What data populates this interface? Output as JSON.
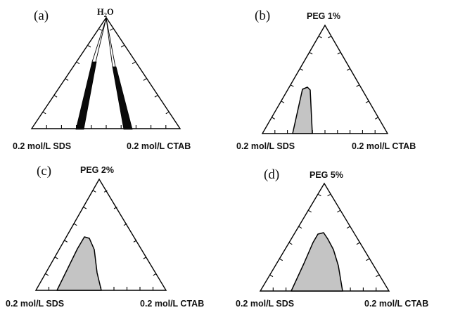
{
  "panels": [
    {
      "id": "a",
      "panel_label": "(a)",
      "top_label": "H2O",
      "top_label_main": "H",
      "top_label_sub": "2",
      "top_label_tail": "O",
      "left_label": "0.2 mol/L SDS",
      "right_label": "0.2 mol/L CTAB"
    },
    {
      "id": "b",
      "panel_label": "(b)",
      "top_label": "PEG 1%",
      "left_label": "0.2 mol/L SDS",
      "right_label": "0.2 mol/L CTAB"
    },
    {
      "id": "c",
      "panel_label": "(c)",
      "top_label": "PEG 2%",
      "left_label": "0.2 mol/L SDS",
      "right_label": "0.2 mol/L CTAB"
    },
    {
      "id": "d",
      "panel_label": "(d)",
      "top_label": "PEG 5%",
      "left_label": "0.2 mol/L SDS",
      "right_label": "0.2 mol/L CTAB"
    }
  ],
  "colors": {
    "region_gray": "#c4c4c4",
    "region_black": "#0a0a0a",
    "line": "#000000"
  }
}
